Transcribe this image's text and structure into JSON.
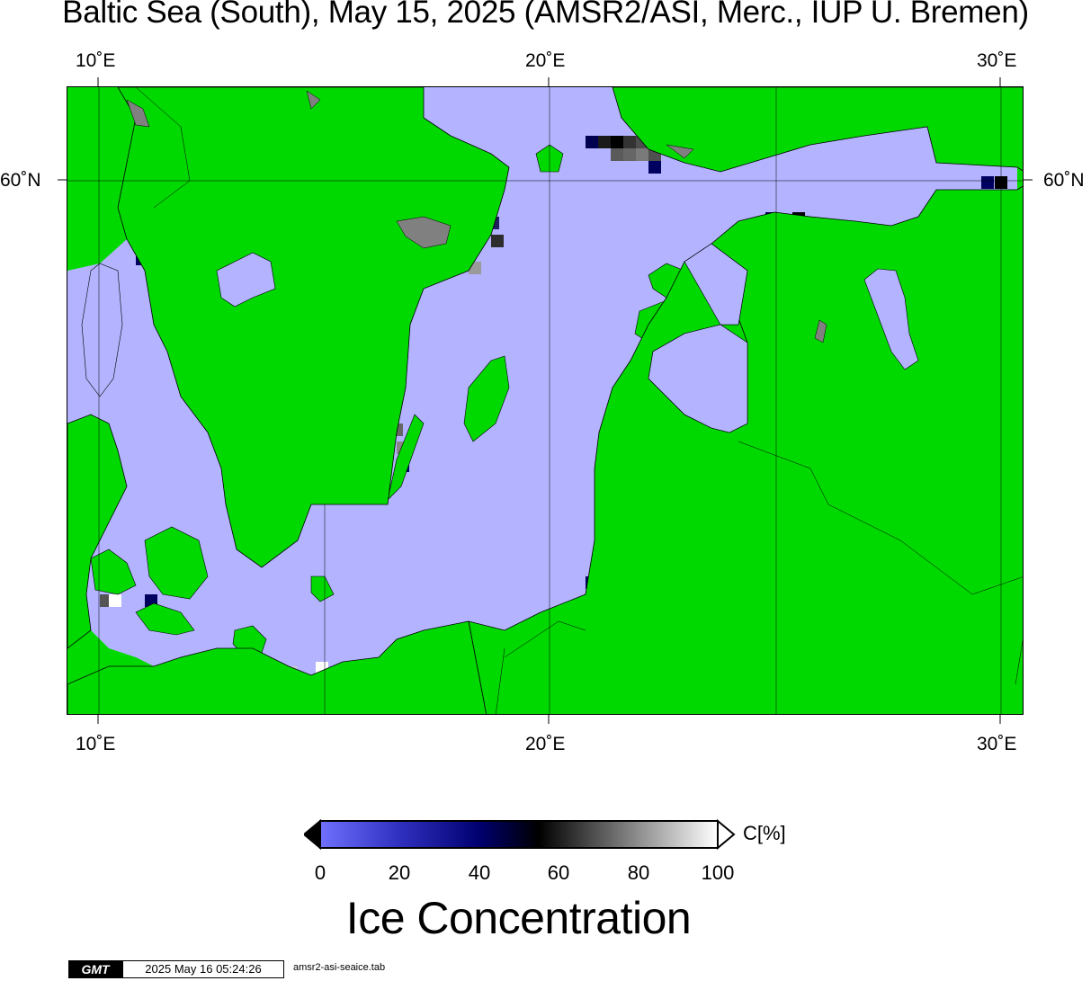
{
  "title": "Baltic Sea (South), May 15, 2025 (AMSR2/ASI, Merc., IUP U. Bremen)",
  "map": {
    "lon_ticks": [
      {
        "label": "10˚E",
        "lon": 10
      },
      {
        "label": "20˚E",
        "lon": 20
      },
      {
        "label": "30˚E",
        "lon": 30
      }
    ],
    "lat_ticks": [
      {
        "label": "60˚N",
        "lat": 60
      }
    ],
    "colors": {
      "land": "#00d900",
      "open_water": "#b3b3ff",
      "no_data": "#808080",
      "coast": "#000000",
      "gridline": "#000000"
    }
  },
  "colorbar": {
    "tick_labels": [
      "0",
      "20",
      "40",
      "60",
      "80",
      "100"
    ],
    "unit": "C[%]",
    "label": "Ice Concentration",
    "colors": {
      "low": "#7070ff",
      "mid_low": "#000070",
      "mid": "#000000",
      "high": "#ffffff"
    }
  },
  "footer": {
    "logo": "GMT",
    "timestamp": "2025 May 16 05:24:26",
    "command": "amsr2-asi-seaice.tab"
  }
}
